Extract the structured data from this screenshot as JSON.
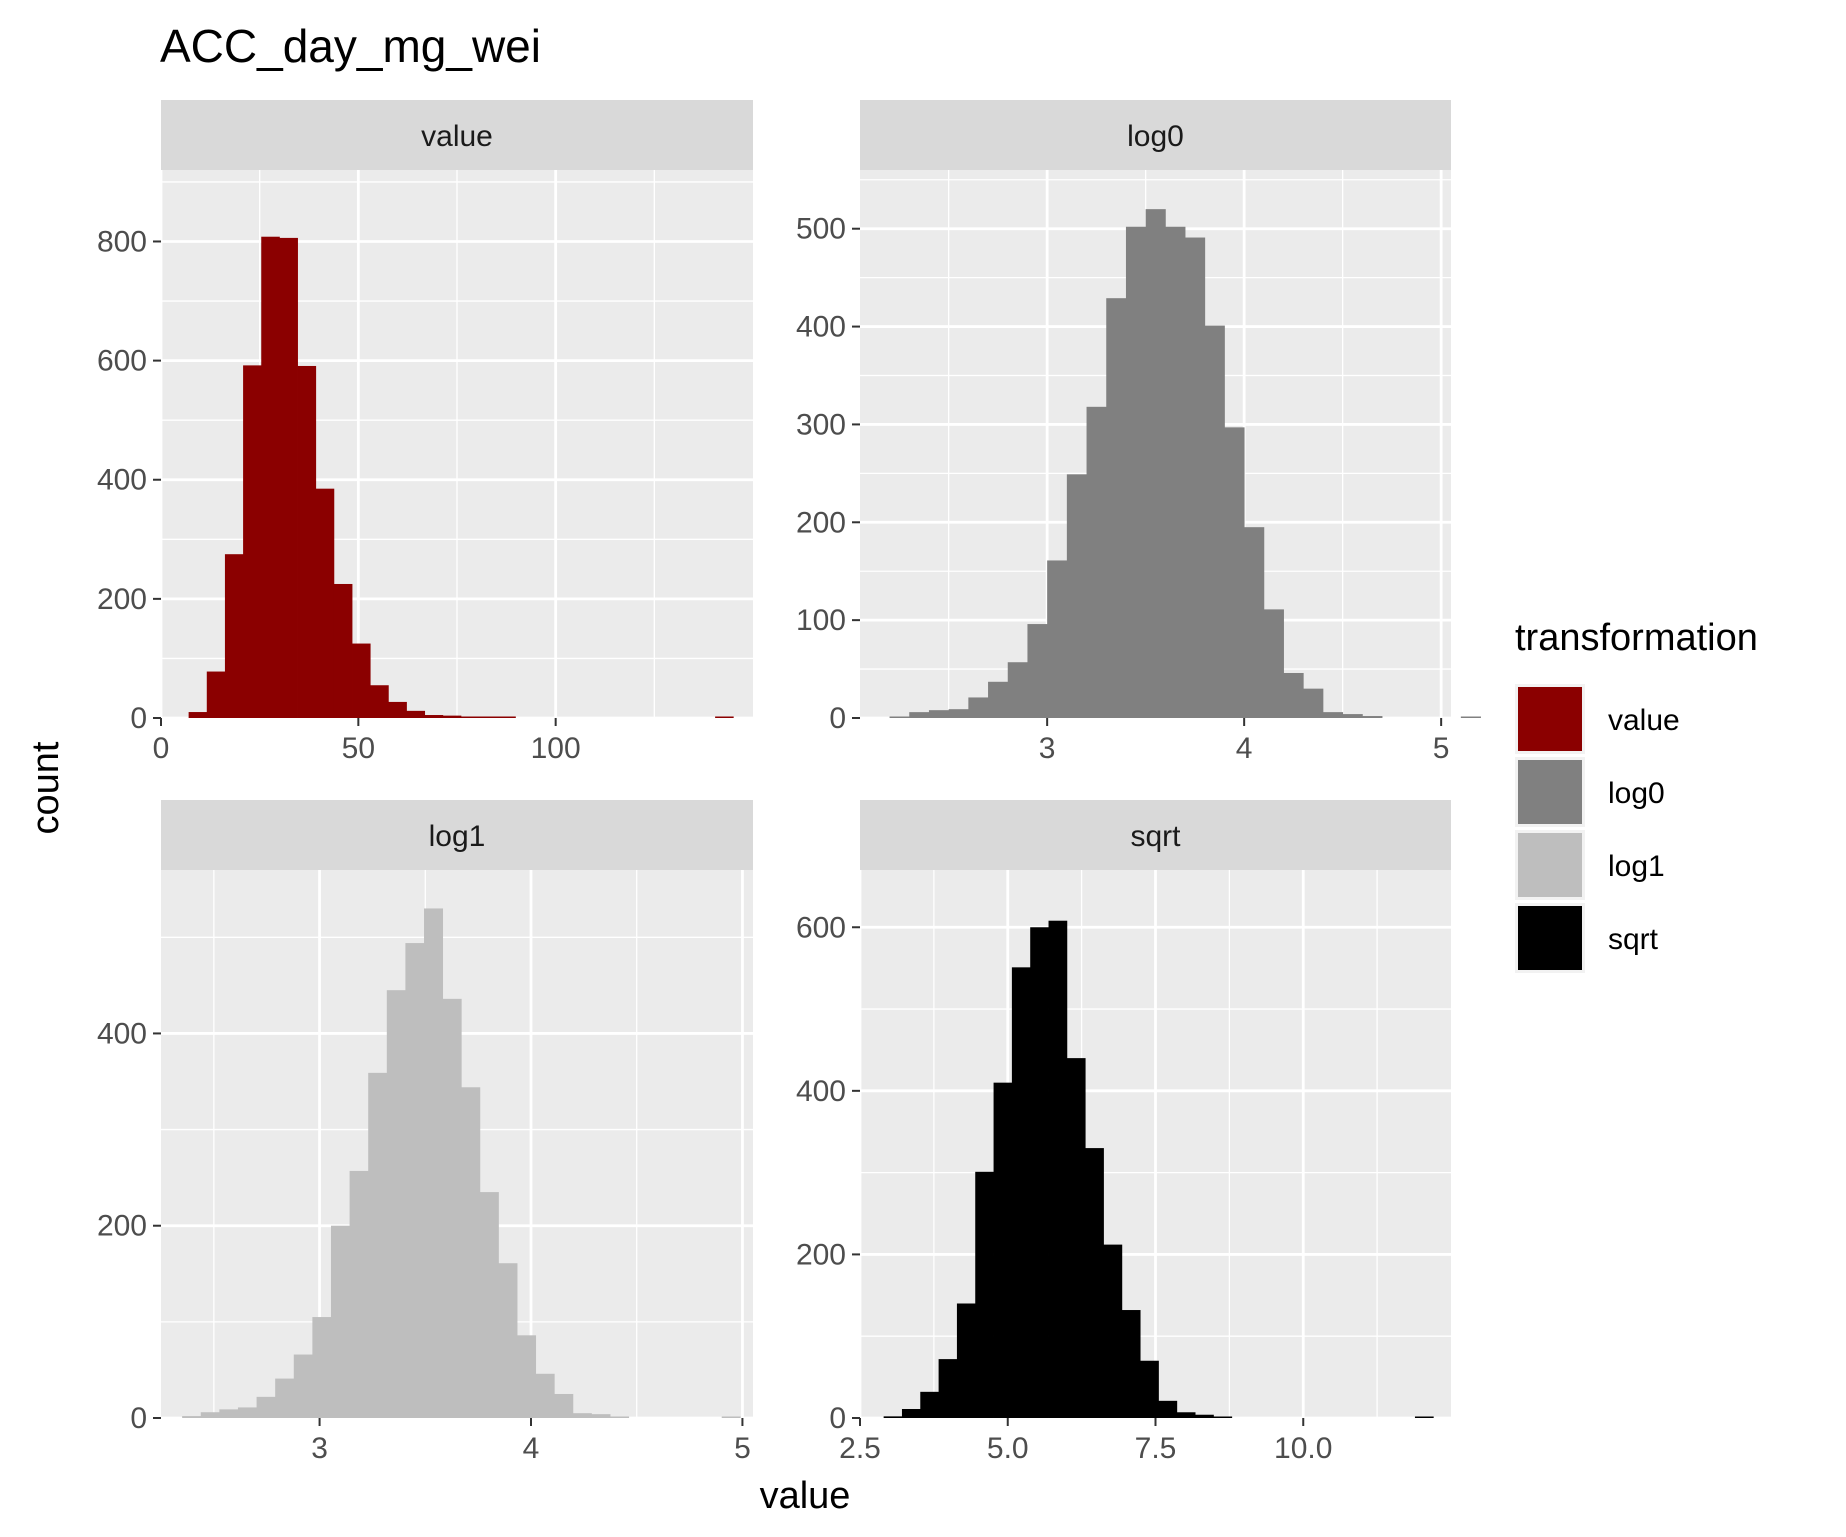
{
  "chart_data": {
    "type": "bar",
    "title": "ACC_day_mg_wei",
    "xlabel": "value",
    "ylabel": "count",
    "legend": {
      "title": "transformation",
      "position": "right",
      "entries": [
        {
          "label": "value",
          "color": "#8B0000"
        },
        {
          "label": "log0",
          "color": "#808080"
        },
        {
          "label": "log1",
          "color": "#BEBEBE"
        },
        {
          "label": "sqrt",
          "color": "#000000"
        }
      ]
    },
    "panels": [
      {
        "name": "value",
        "strip": "value",
        "color": "#8B0000",
        "xlim": [
          0,
          150
        ],
        "ylim": [
          0,
          920
        ],
        "xticks": [
          {
            "v": 0,
            "label": "0"
          },
          {
            "v": 50,
            "label": "50"
          },
          {
            "v": 100,
            "label": "100"
          }
        ],
        "yticks": [
          {
            "v": 0,
            "label": "0"
          },
          {
            "v": 200,
            "label": "200"
          },
          {
            "v": 400,
            "label": "400"
          },
          {
            "v": 600,
            "label": "600"
          },
          {
            "v": 800,
            "label": "800"
          }
        ],
        "bins": {
          "start": 7,
          "width": 4.6,
          "counts": [
            10,
            78,
            275,
            592,
            808,
            806,
            591,
            385,
            225,
            125,
            55,
            27,
            12,
            5,
            4,
            2,
            2,
            1,
            0,
            0,
            0,
            0,
            0,
            0,
            0,
            0,
            0,
            0,
            0,
            1
          ]
        }
      },
      {
        "name": "log0",
        "strip": "log0",
        "color": "#808080",
        "xlim": [
          2.05,
          5.05
        ],
        "ylim": [
          0,
          560
        ],
        "xticks": [
          {
            "v": 3,
            "label": "3"
          },
          {
            "v": 4,
            "label": "4"
          },
          {
            "v": 5,
            "label": "5"
          }
        ],
        "yticks": [
          {
            "v": 0,
            "label": "0"
          },
          {
            "v": 100,
            "label": "100"
          },
          {
            "v": 200,
            "label": "200"
          },
          {
            "v": 300,
            "label": "300"
          },
          {
            "v": 400,
            "label": "400"
          },
          {
            "v": 500,
            "label": "500"
          }
        ],
        "bins": {
          "start": 2.2,
          "width": 0.1,
          "counts": [
            1,
            6,
            8,
            9,
            21,
            37,
            57,
            96,
            161,
            249,
            318,
            429,
            502,
            520,
            502,
            491,
            401,
            297,
            195,
            111,
            46,
            30,
            6,
            4,
            2,
            0,
            0,
            0,
            0,
            1
          ]
        }
      },
      {
        "name": "log1",
        "strip": "log1",
        "color": "#BEBEBE",
        "xlim": [
          2.25,
          5.05
        ],
        "ylim": [
          0,
          570
        ],
        "xticks": [
          {
            "v": 3,
            "label": "3"
          },
          {
            "v": 4,
            "label": "4"
          },
          {
            "v": 5,
            "label": "5"
          }
        ],
        "yticks": [
          {
            "v": 0,
            "label": "0"
          },
          {
            "v": 200,
            "label": "200"
          },
          {
            "v": 400,
            "label": "400"
          }
        ],
        "bins": {
          "start": 2.35,
          "width": 0.088,
          "counts": [
            2,
            6,
            9,
            11,
            22,
            41,
            66,
            105,
            200,
            257,
            359,
            445,
            494,
            530,
            436,
            344,
            235,
            161,
            86,
            46,
            25,
            5,
            4,
            1,
            0,
            0,
            0,
            0,
            0,
            1
          ]
        }
      },
      {
        "name": "sqrt",
        "strip": "sqrt",
        "color": "#000000",
        "xlim": [
          2.5,
          12.5
        ],
        "ylim": [
          0,
          670
        ],
        "xticks": [
          {
            "v": 2.5,
            "label": "2.5"
          },
          {
            "v": 5,
            "label": "5.0"
          },
          {
            "v": 7.5,
            "label": "7.5"
          },
          {
            "v": 10,
            "label": "10.0"
          }
        ],
        "yticks": [
          {
            "v": 0,
            "label": "0"
          },
          {
            "v": 200,
            "label": "200"
          },
          {
            "v": 400,
            "label": "400"
          },
          {
            "v": 600,
            "label": "600"
          }
        ],
        "bins": {
          "start": 2.9,
          "width": 0.31,
          "counts": [
            2,
            11,
            32,
            72,
            140,
            301,
            410,
            551,
            600,
            608,
            440,
            330,
            212,
            132,
            70,
            21,
            7,
            4,
            1,
            0,
            0,
            0,
            0,
            0,
            0,
            0,
            0,
            0,
            0,
            1
          ]
        }
      }
    ]
  }
}
